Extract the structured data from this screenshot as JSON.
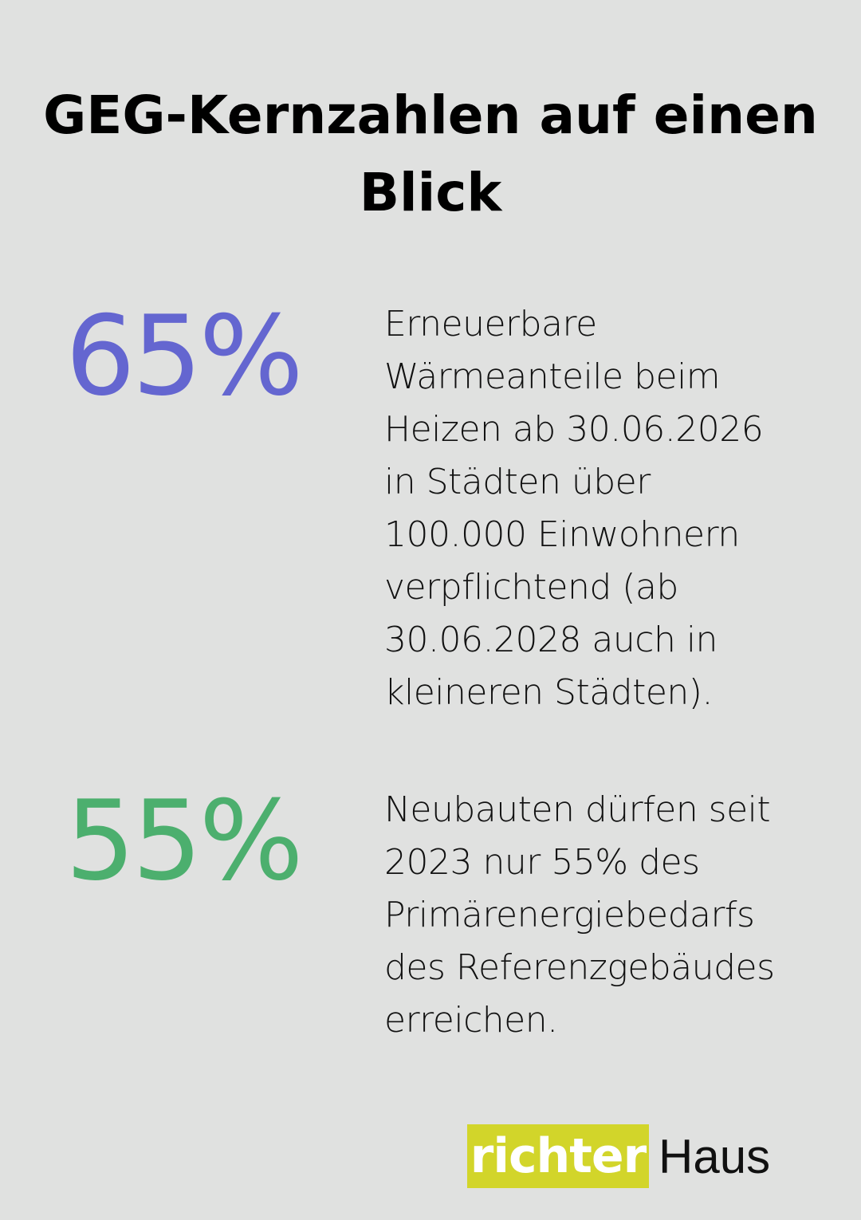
{
  "title": {
    "lines": [
      "GEG-Kernzahlen auf einen",
      "Blick"
    ]
  },
  "facts": [
    {
      "value": "65%",
      "color": "#6466d0",
      "text_lines": [
        "Erneuerbare",
        "Wärmeanteile beim",
        "Heizen ab 30.06.2026",
        "in Städten über",
        "100.000 Einwohnern",
        "verpflichtend (ab",
        "30.06.2028 auch in",
        "kleineren Städten)."
      ]
    },
    {
      "value": "55%",
      "color": "#4caf6e",
      "text_lines": [
        "Neubauten dürfen seit",
        "2023 nur 55% des",
        "Primärenergiebedarfs",
        "des Referenzgebäudes",
        "erreichen."
      ]
    }
  ],
  "logo": {
    "part1": "richter",
    "part2": "Haus",
    "accent_color": "#d2d52a"
  }
}
